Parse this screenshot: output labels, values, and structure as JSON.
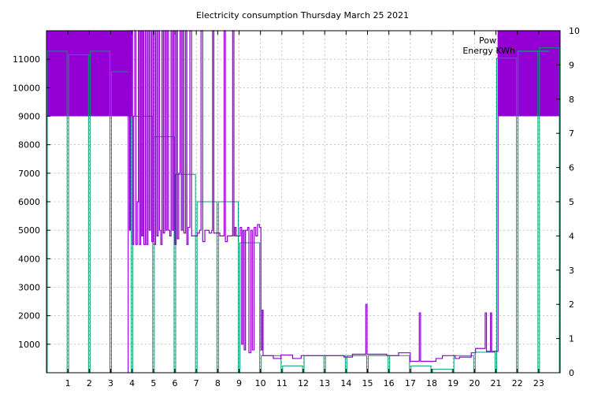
{
  "chart_data": {
    "type": "line",
    "title": "Electricity consumption Thursday March 25 2021",
    "xlabel": "",
    "ylabel": "",
    "xlim": [
      0,
      24
    ],
    "ylim": [
      0,
      12000
    ],
    "y2lim": [
      0,
      10
    ],
    "x_ticks": [
      "1",
      "2",
      "3",
      "4",
      "5",
      "6",
      "7",
      "8",
      "9",
      "10",
      "11",
      "12",
      "13",
      "14",
      "15",
      "16",
      "17",
      "18",
      "19",
      "20",
      "21",
      "22",
      "23"
    ],
    "y_ticks": [
      "1000",
      "2000",
      "3000",
      "4000",
      "5000",
      "6000",
      "7000",
      "8000",
      "9000",
      "10000",
      "11000"
    ],
    "y2_ticks": [
      "0",
      "1",
      "2",
      "3",
      "4",
      "5",
      "6",
      "7",
      "8",
      "9",
      "10"
    ],
    "grid": true,
    "legend_position": "top-right",
    "colors": {
      "power": "#9400d3",
      "energy": "#009e73"
    },
    "series": [
      {
        "name": "Pow",
        "axis": "left",
        "style": "step",
        "points": [
          [
            3.8,
            0
          ],
          [
            3.82,
            9000
          ],
          [
            3.85,
            12000
          ],
          [
            3.88,
            5000
          ],
          [
            3.92,
            9000
          ],
          [
            3.96,
            12000
          ],
          [
            4.02,
            4500
          ],
          [
            4.08,
            9000
          ],
          [
            4.12,
            12000
          ],
          [
            4.18,
            4500
          ],
          [
            4.24,
            6000
          ],
          [
            4.3,
            12000
          ],
          [
            4.34,
            4500
          ],
          [
            4.4,
            12000
          ],
          [
            4.45,
            4800
          ],
          [
            4.5,
            12000
          ],
          [
            4.55,
            4500
          ],
          [
            4.62,
            12000
          ],
          [
            4.68,
            4500
          ],
          [
            4.74,
            12000
          ],
          [
            4.8,
            5000
          ],
          [
            4.86,
            12000
          ],
          [
            4.92,
            4600
          ],
          [
            4.98,
            12000
          ],
          [
            5.04,
            4500
          ],
          [
            5.1,
            12000
          ],
          [
            5.16,
            4800
          ],
          [
            5.22,
            12000
          ],
          [
            5.28,
            5000
          ],
          [
            5.34,
            4500
          ],
          [
            5.4,
            12000
          ],
          [
            5.46,
            4900
          ],
          [
            5.52,
            12000
          ],
          [
            5.58,
            5000
          ],
          [
            5.64,
            12000
          ],
          [
            5.7,
            5000
          ],
          [
            5.76,
            4800
          ],
          [
            5.82,
            12000
          ],
          [
            5.88,
            5000
          ],
          [
            5.94,
            12000
          ],
          [
            6.0,
            4500
          ],
          [
            6.06,
            12000
          ],
          [
            6.12,
            4700
          ],
          [
            6.18,
            7000
          ],
          [
            6.24,
            12000
          ],
          [
            6.3,
            5000
          ],
          [
            6.36,
            12000
          ],
          [
            6.42,
            4900
          ],
          [
            6.5,
            12000
          ],
          [
            6.56,
            4500
          ],
          [
            6.62,
            5100
          ],
          [
            6.7,
            12000
          ],
          [
            6.78,
            4800
          ],
          [
            7.05,
            4900
          ],
          [
            7.15,
            5000
          ],
          [
            7.22,
            12000
          ],
          [
            7.3,
            4600
          ],
          [
            7.4,
            5000
          ],
          [
            7.6,
            4900
          ],
          [
            7.72,
            5000
          ],
          [
            7.76,
            12000
          ],
          [
            7.82,
            4900
          ],
          [
            8.1,
            4800
          ],
          [
            8.3,
            12000
          ],
          [
            8.36,
            4600
          ],
          [
            8.45,
            4800
          ],
          [
            8.7,
            12000
          ],
          [
            8.76,
            4800
          ],
          [
            8.8,
            5100
          ],
          [
            8.86,
            4800
          ],
          [
            9.05,
            5100
          ],
          [
            9.12,
            1000
          ],
          [
            9.18,
            5000
          ],
          [
            9.24,
            800
          ],
          [
            9.3,
            5000
          ],
          [
            9.4,
            5100
          ],
          [
            9.46,
            700
          ],
          [
            9.55,
            5000
          ],
          [
            9.62,
            800
          ],
          [
            9.7,
            5100
          ],
          [
            9.78,
            4800
          ],
          [
            9.86,
            5200
          ],
          [
            9.95,
            5100
          ],
          [
            10.02,
            800
          ],
          [
            10.08,
            2200
          ],
          [
            10.12,
            600
          ],
          [
            10.5,
            600
          ],
          [
            10.6,
            500
          ],
          [
            10.95,
            620
          ],
          [
            11.5,
            500
          ],
          [
            11.9,
            600
          ],
          [
            13.1,
            600
          ],
          [
            13.9,
            550
          ],
          [
            14.3,
            650
          ],
          [
            14.92,
            2400
          ],
          [
            14.98,
            650
          ],
          [
            15.4,
            650
          ],
          [
            15.9,
            600
          ],
          [
            16.45,
            700
          ],
          [
            17.0,
            400
          ],
          [
            17.42,
            2100
          ],
          [
            17.48,
            400
          ],
          [
            18.2,
            500
          ],
          [
            18.5,
            600
          ],
          [
            19.1,
            500
          ],
          [
            19.3,
            550
          ],
          [
            19.85,
            700
          ],
          [
            20.05,
            850
          ],
          [
            20.5,
            2100
          ],
          [
            20.56,
            750
          ],
          [
            20.75,
            2100
          ],
          [
            20.8,
            750
          ],
          [
            21.0,
            750
          ],
          [
            21.1,
            12000
          ],
          [
            24,
            12000
          ]
        ]
      },
      {
        "name": "Energy KWh",
        "axis": "right",
        "style": "bars",
        "values": [
          9.4,
          9.3,
          9.4,
          8.8,
          7.5,
          6.9,
          5.8,
          5.0,
          5.0,
          3.8,
          0.5,
          0.2,
          0.5,
          0.5,
          0.5,
          0.5,
          0.5,
          0.2,
          0.1,
          0.5,
          0.6,
          9.2,
          9.4,
          9.5
        ]
      }
    ]
  }
}
